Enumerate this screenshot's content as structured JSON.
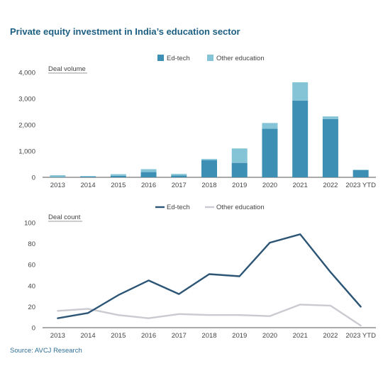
{
  "title": "Private equity investment in India’s education sector",
  "source": "Source: AVCJ Research",
  "colors": {
    "edtech_bar": "#3d8fb3",
    "other_bar": "#85c4d6",
    "edtech_line": "#2d5575",
    "other_line": "#c9cbd1",
    "title": "#1c5f82"
  },
  "chart_data": [
    {
      "type": "bar",
      "stacked": true,
      "ylabel": "Deal volume",
      "categories": [
        "2013",
        "2014",
        "2015",
        "2016",
        "2017",
        "2018",
        "2019",
        "2020",
        "2021",
        "2022",
        "2023 YTD"
      ],
      "ylim": [
        0,
        4000
      ],
      "yticks": [
        "0",
        "1,000",
        "2,000",
        "3,000",
        "4,000"
      ],
      "yticks_values": [
        0,
        1000,
        2000,
        3000,
        4000
      ],
      "legend": "top",
      "series": [
        {
          "name": "Ed-tech",
          "values": [
            20,
            30,
            60,
            200,
            70,
            650,
            550,
            1850,
            2920,
            2220,
            270
          ]
        },
        {
          "name": "Other education",
          "values": [
            60,
            20,
            60,
            110,
            60,
            50,
            550,
            220,
            700,
            100,
            20
          ]
        }
      ]
    },
    {
      "type": "line",
      "ylabel": "Deal count",
      "categories": [
        "2013",
        "2014",
        "2015",
        "2016",
        "2017",
        "2018",
        "2019",
        "2020",
        "2021",
        "2022",
        "2023 YTD"
      ],
      "ylim": [
        0,
        100
      ],
      "yticks": [
        "0",
        "20",
        "40",
        "60",
        "80",
        "100"
      ],
      "yticks_values": [
        0,
        20,
        40,
        60,
        80,
        100
      ],
      "legend": "top",
      "series": [
        {
          "name": "Ed-tech",
          "values": [
            9,
            14,
            31,
            45,
            32,
            51,
            49,
            81,
            89,
            53,
            20
          ]
        },
        {
          "name": "Other education",
          "values": [
            16,
            18,
            12,
            9,
            13,
            12,
            12,
            11,
            22,
            21,
            2
          ]
        }
      ]
    }
  ]
}
